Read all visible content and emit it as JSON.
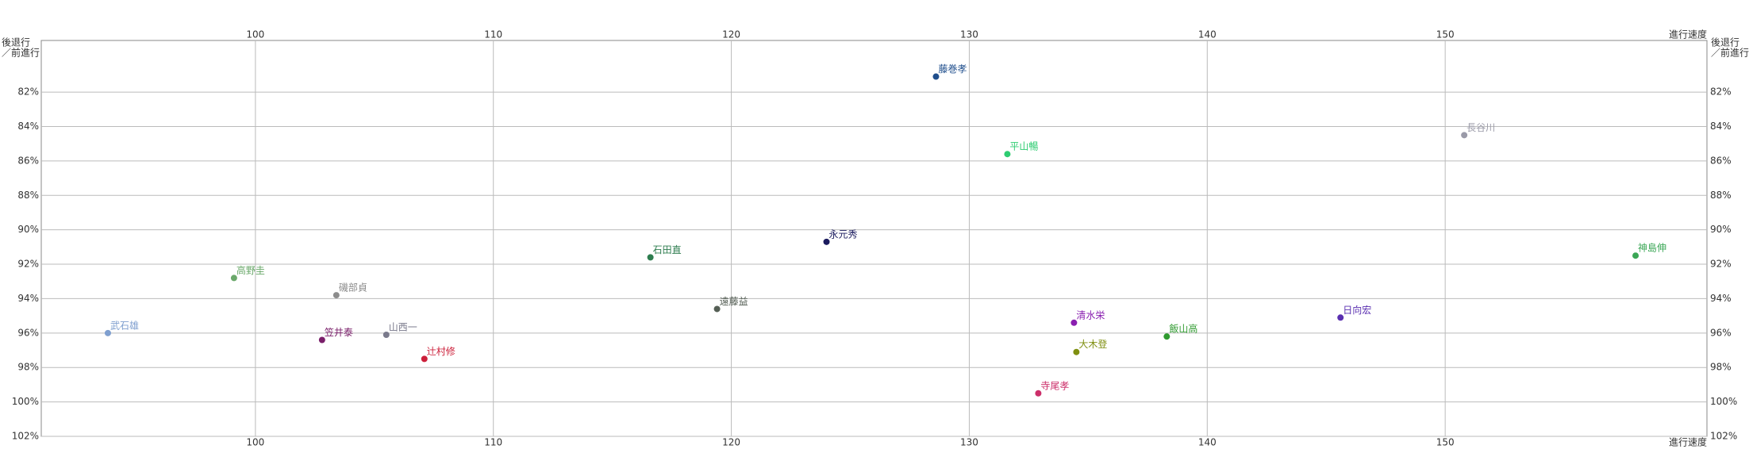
{
  "chart_data": {
    "type": "scatter",
    "x_label": "進行速度",
    "y_label": [
      "後退行",
      "／前進行"
    ],
    "labels": [
      "藤巻孝",
      "平山暢",
      "長谷川",
      "永元秀",
      "石田直",
      "神島伸",
      "高野圭",
      "磯部貞",
      "遠藤益",
      "武石雄",
      "笠井泰",
      "山西一",
      "辻村修",
      "清水栄",
      "日向宏",
      "飯山高",
      "大木登",
      "寺尾孝"
    ],
    "x": [
      128.6,
      131.6,
      150.8,
      124.0,
      116.6,
      158.0,
      99.1,
      103.4,
      119.4,
      93.8,
      102.8,
      105.5,
      107.1,
      134.4,
      145.6,
      138.3,
      134.5,
      132.9
    ],
    "values": [
      81.1,
      85.6,
      84.5,
      90.7,
      91.6,
      91.5,
      92.8,
      93.8,
      94.6,
      96.0,
      96.4,
      96.1,
      97.5,
      95.4,
      95.1,
      96.2,
      97.1,
      99.5
    ],
    "colors": [
      "#1f4e8c",
      "#2ecc71",
      "#9a9aa8",
      "#1b1b5e",
      "#2e7d4f",
      "#3aa655",
      "#6aa86a",
      "#8c8c8c",
      "#555f55",
      "#7f9fcf",
      "#7a1f6a",
      "#7a7a8c",
      "#cc1f3a",
      "#8a1fb0",
      "#5a2fb0",
      "#2f9a2f",
      "#7f8f10",
      "#cc2f6a"
    ],
    "xlim": [
      91,
      161
    ],
    "xticks": [
      100,
      110,
      120,
      130,
      140,
      150
    ],
    "ylim": [
      79,
      102
    ],
    "y_inverted": true,
    "yticks": [
      {
        "value": 82,
        "label": "82%"
      },
      {
        "value": 84,
        "label": "84%"
      },
      {
        "value": 86,
        "label": "86%"
      },
      {
        "value": 88,
        "label": "88%"
      },
      {
        "value": 90,
        "label": "90%"
      },
      {
        "value": 92,
        "label": "92%"
      },
      {
        "value": 94,
        "label": "94%"
      },
      {
        "value": 96,
        "label": "96%"
      },
      {
        "value": 98,
        "label": "98%"
      },
      {
        "value": 100,
        "label": "100%"
      },
      {
        "value": 102,
        "label": "102%"
      }
    ],
    "grid": true
  }
}
